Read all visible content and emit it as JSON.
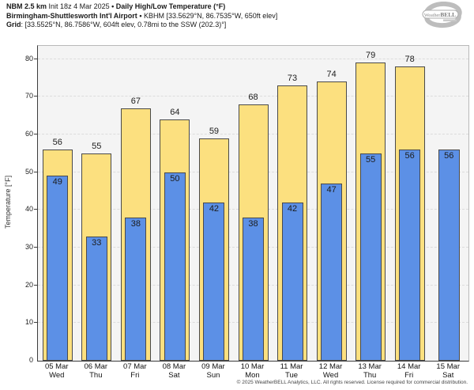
{
  "header": {
    "line1_model": "NBM 2.5 km",
    "line1_init": "Init 18z 4 Mar 2025",
    "line1_sep": "•",
    "line1_product": "Daily High/Low Temperature (°F)",
    "line2_station": "Birmingham-Shuttlesworth Int'l Airport",
    "line2_sep": "•",
    "line2_details": "KBHM [33.5629°N, 86.7535°W, 650ft elev]",
    "line3_label": "Grid",
    "line3_details": ": [33.5525°N, 86.7586°W, 604ft elev, 0.78mi to the SSW (202.3)°]"
  },
  "logo": {
    "brand": "WeatherBELL"
  },
  "chart_data": {
    "type": "bar",
    "title": "Daily High/Low Temperature (°F)",
    "xlabel": "",
    "ylabel": "Temperature [°F]",
    "ylim": [
      0,
      83.5
    ],
    "yticks": [
      0,
      10,
      20,
      30,
      40,
      50,
      60,
      70,
      80
    ],
    "grid": "horizontal-dashed",
    "legend_position": "none",
    "categories": [
      {
        "date": "05 Mar",
        "day": "Wed"
      },
      {
        "date": "06 Mar",
        "day": "Thu"
      },
      {
        "date": "07 Mar",
        "day": "Fri"
      },
      {
        "date": "08 Mar",
        "day": "Sat"
      },
      {
        "date": "09 Mar",
        "day": "Sun"
      },
      {
        "date": "10 Mar",
        "day": "Mon"
      },
      {
        "date": "11 Mar",
        "day": "Tue"
      },
      {
        "date": "12 Mar",
        "day": "Wed"
      },
      {
        "date": "13 Mar",
        "day": "Thu"
      },
      {
        "date": "14 Mar",
        "day": "Fri"
      },
      {
        "date": "15 Mar",
        "day": "Sat"
      }
    ],
    "series": [
      {
        "name": "High",
        "color": "#fce07f",
        "values": [
          56,
          55,
          67,
          64,
          59,
          68,
          73,
          74,
          79,
          78,
          null
        ]
      },
      {
        "name": "Low",
        "color": "#5c90e6",
        "values": [
          49,
          33,
          38,
          50,
          42,
          38,
          42,
          47,
          55,
          56,
          56
        ]
      }
    ]
  },
  "colors": {
    "high_fill": "#fce07f",
    "low_fill": "#5c90e6",
    "bar_border": "#4a4a4a",
    "plot_bg": "#f4f4f4",
    "gridline": "#dcdcdc",
    "axis": "#3c3c3c"
  },
  "footer": "© 2025 WeatherBELL Analytics, LLC. All rights reserved. License required for commercial distribution."
}
